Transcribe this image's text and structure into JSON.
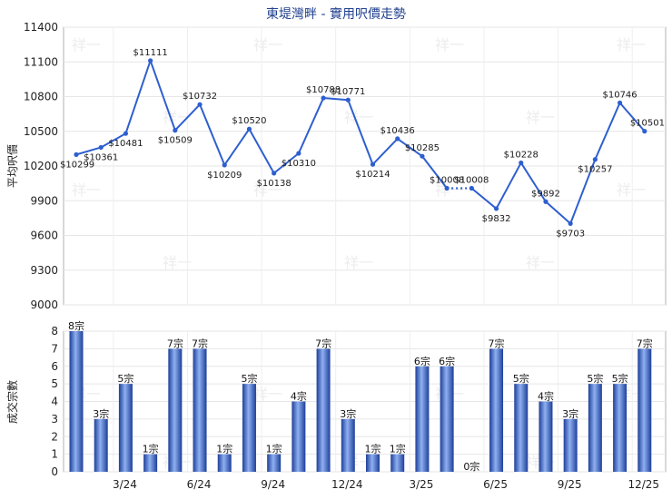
{
  "chart_data": [
    {
      "type": "line",
      "title": "東堤灣畔 - 實用呎價走勢",
      "ylabel": "平均呎價",
      "ylim": [
        9000,
        11400
      ],
      "yticks": [
        "11400",
        "11100",
        "10800",
        "10500",
        "10200",
        "9900",
        "9600",
        "9300",
        "9000"
      ],
      "series": [
        {
          "values": [
            10299,
            10361,
            10481,
            11111,
            10509,
            10732,
            10209,
            10520,
            10138,
            10310,
            10788,
            10771,
            10214,
            10436,
            10285,
            10008,
            10008,
            9832,
            10228,
            9892,
            9703,
            10257,
            10746,
            10501
          ],
          "labels": [
            "$10299",
            "$10361",
            "$10481",
            "$11111",
            "$10509",
            "$10732",
            "$10209",
            "$10520",
            "$10138",
            "$10310",
            "$10788",
            "$10771",
            "$10214",
            "$10436",
            "$10285",
            "$10008",
            "$10008",
            "$9832",
            "$10228",
            "$9892",
            "$9703",
            "$10257",
            "$10746",
            "$10501"
          ],
          "dashed_segments": [
            [
              15,
              16
            ]
          ]
        }
      ],
      "color": "#2e5fd0"
    },
    {
      "type": "bar",
      "ylabel": "成交宗數",
      "ylim": [
        0,
        8
      ],
      "yticks": [
        "8",
        "7",
        "6",
        "5",
        "4",
        "3",
        "2",
        "1",
        "0"
      ],
      "x_tick_labels": [
        "3/24",
        "6/24",
        "9/24",
        "12/24",
        "3/25",
        "6/25",
        "9/25",
        "12/25"
      ],
      "values": [
        8,
        3,
        5,
        1,
        7,
        7,
        1,
        5,
        1,
        4,
        7,
        3,
        1,
        1,
        6,
        6,
        0,
        7,
        5,
        4,
        3,
        5,
        5,
        7
      ],
      "labels": [
        "8宗",
        "3宗",
        "5宗",
        "1宗",
        "7宗",
        "7宗",
        "1宗",
        "5宗",
        "1宗",
        "4宗",
        "7宗",
        "3宗",
        "1宗",
        "1宗",
        "6宗",
        "6宗",
        "0宗",
        "7宗",
        "5宗",
        "4宗",
        "3宗",
        "5宗",
        "5宗",
        "7宗"
      ],
      "color": "#3a66c8"
    }
  ],
  "watermark": "祥一"
}
